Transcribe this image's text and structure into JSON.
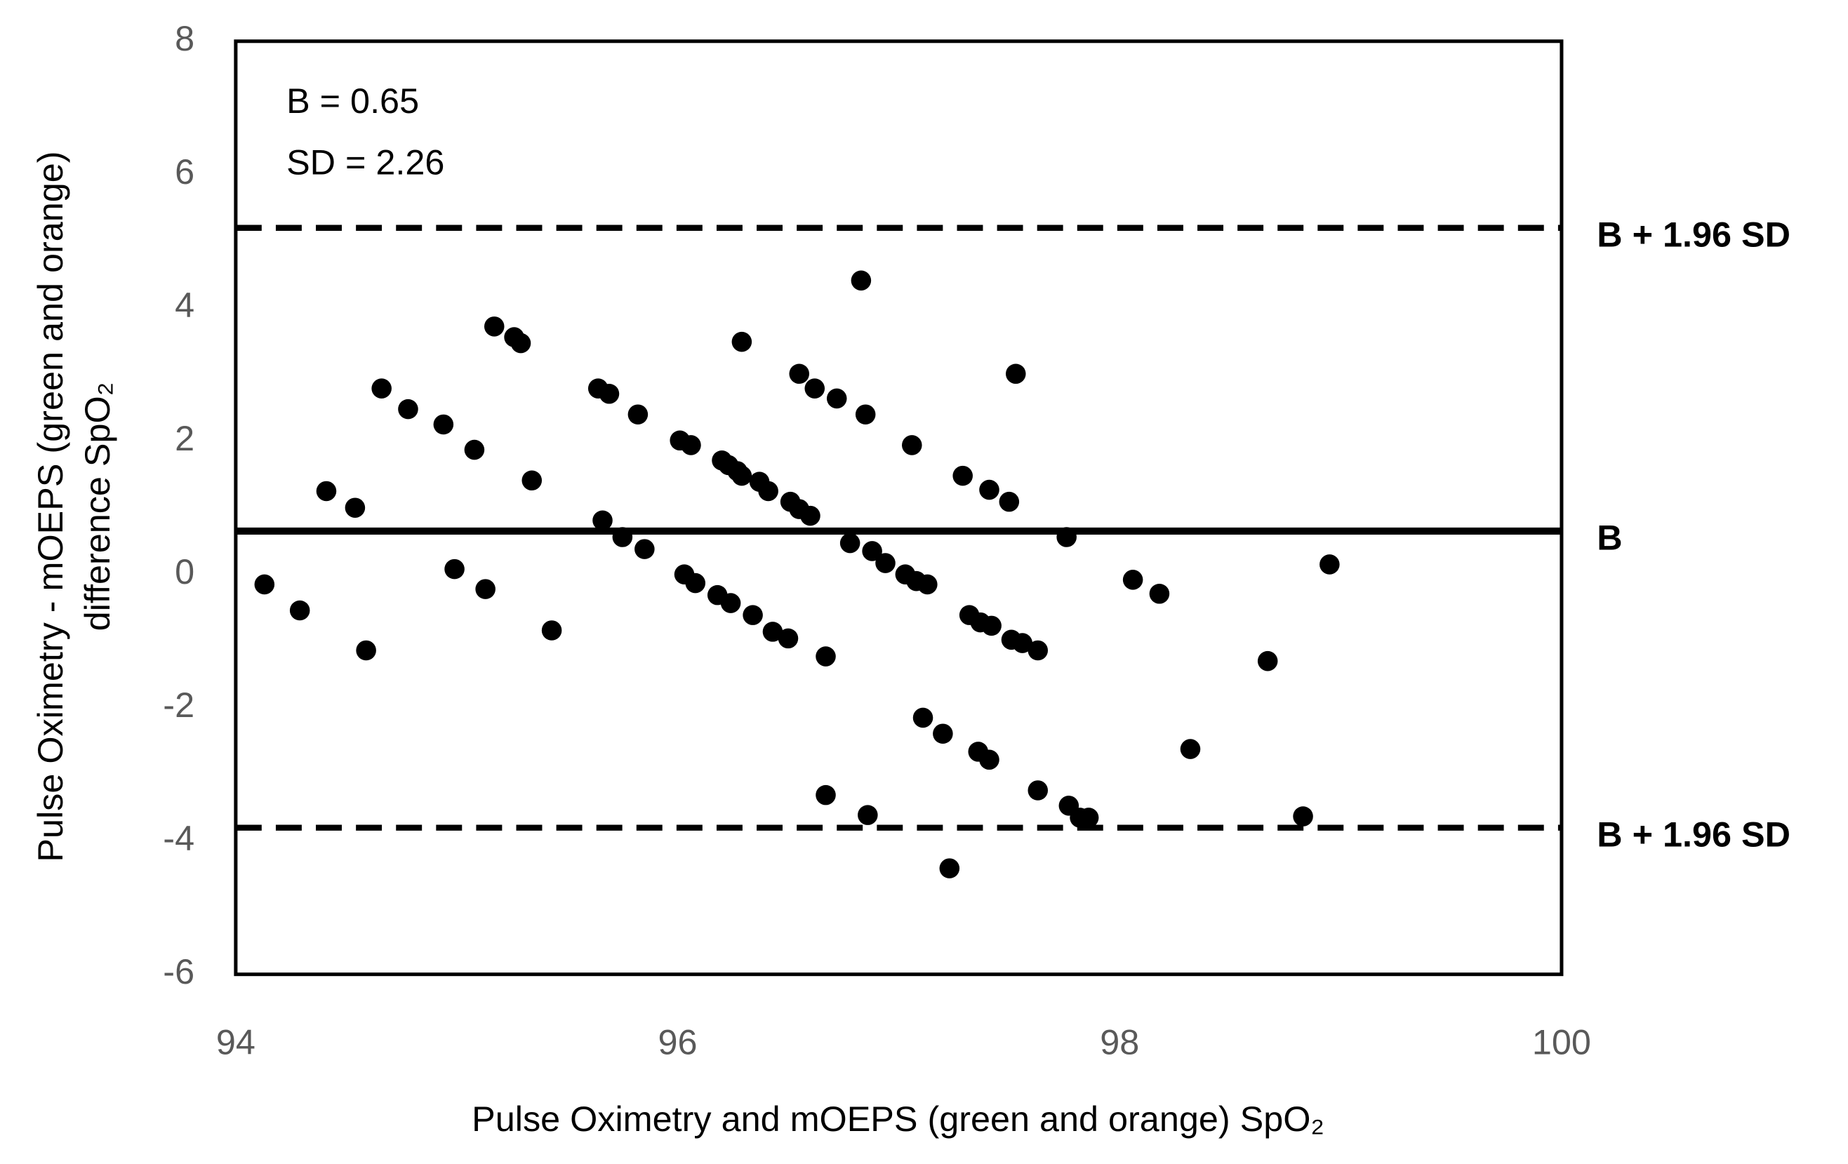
{
  "chart_data": {
    "type": "scatter",
    "x_label": "Pulse Oximetry and mOEPS (green and orange) SpO₂",
    "y_label": [
      "Pulse Oximetry - mOEPS (green and orange)",
      "difference SpO₂"
    ],
    "annotations": [
      "B = 0.65",
      "SD = 2.26"
    ],
    "xlim": [
      94,
      100
    ],
    "xticks": [
      94,
      96,
      98,
      100
    ],
    "ylim": [
      -6,
      8
    ],
    "yticks": [
      -6,
      -4,
      -2,
      0,
      2,
      4,
      6,
      8
    ],
    "color": "#000000",
    "reference_lines": [
      {
        "label": "B + 1.96 SD",
        "value": 5.2,
        "style": "dashed"
      },
      {
        "label": "B",
        "value": 0.65,
        "style": "solid"
      },
      {
        "label": "B + 1.96 SD",
        "value": -3.8,
        "style": "dashed"
      }
    ],
    "x": [
      94.13,
      94.29,
      94.41,
      94.54,
      94.59,
      94.66,
      94.78,
      94.94,
      94.99,
      95.08,
      95.13,
      95.17,
      95.26,
      95.29,
      95.34,
      95.43,
      95.64,
      95.69,
      95.66,
      95.75,
      95.82,
      95.85,
      96.01,
      96.06,
      96.03,
      96.08,
      96.2,
      96.23,
      96.27,
      96.29,
      96.18,
      96.24,
      96.29,
      96.37,
      96.41,
      96.34,
      96.43,
      96.5,
      96.51,
      96.55,
      96.6,
      96.55,
      96.62,
      96.72,
      96.67,
      96.67,
      96.78,
      96.83,
      96.85,
      96.86,
      96.88,
      96.94,
      97.06,
      97.03,
      97.08,
      97.13,
      97.11,
      97.2,
      97.23,
      97.29,
      97.32,
      97.37,
      97.42,
      97.36,
      97.41,
      97.41,
      97.5,
      97.53,
      97.51,
      97.56,
      97.63,
      97.63,
      97.76,
      97.77,
      97.82,
      97.86,
      98.06,
      98.18,
      98.32,
      98.67,
      98.83,
      98.95
    ],
    "values": [
      -0.15,
      -0.54,
      1.25,
      1.0,
      -1.14,
      2.79,
      2.48,
      2.25,
      0.08,
      1.87,
      -0.22,
      3.72,
      3.56,
      3.47,
      1.41,
      -0.84,
      2.79,
      2.71,
      0.81,
      0.56,
      2.4,
      0.38,
      2.01,
      1.94,
      0.0,
      -0.13,
      1.71,
      1.64,
      1.55,
      1.48,
      -0.31,
      -0.43,
      3.49,
      1.39,
      1.25,
      -0.61,
      -0.86,
      -0.96,
      1.09,
      0.98,
      0.88,
      3.01,
      2.79,
      2.64,
      -1.23,
      -3.31,
      0.47,
      4.41,
      2.4,
      -3.61,
      0.35,
      0.17,
      1.94,
      0.0,
      -0.1,
      -0.15,
      -2.15,
      -2.39,
      -4.41,
      1.48,
      -0.61,
      -0.72,
      -0.77,
      -2.66,
      -2.78,
      1.27,
      1.09,
      3.01,
      -0.98,
      -1.03,
      -1.14,
      -3.24,
      0.56,
      -3.47,
      -3.65,
      -3.65,
      -0.08,
      -0.29,
      -2.62,
      -1.3,
      -3.63,
      0.15
    ]
  }
}
